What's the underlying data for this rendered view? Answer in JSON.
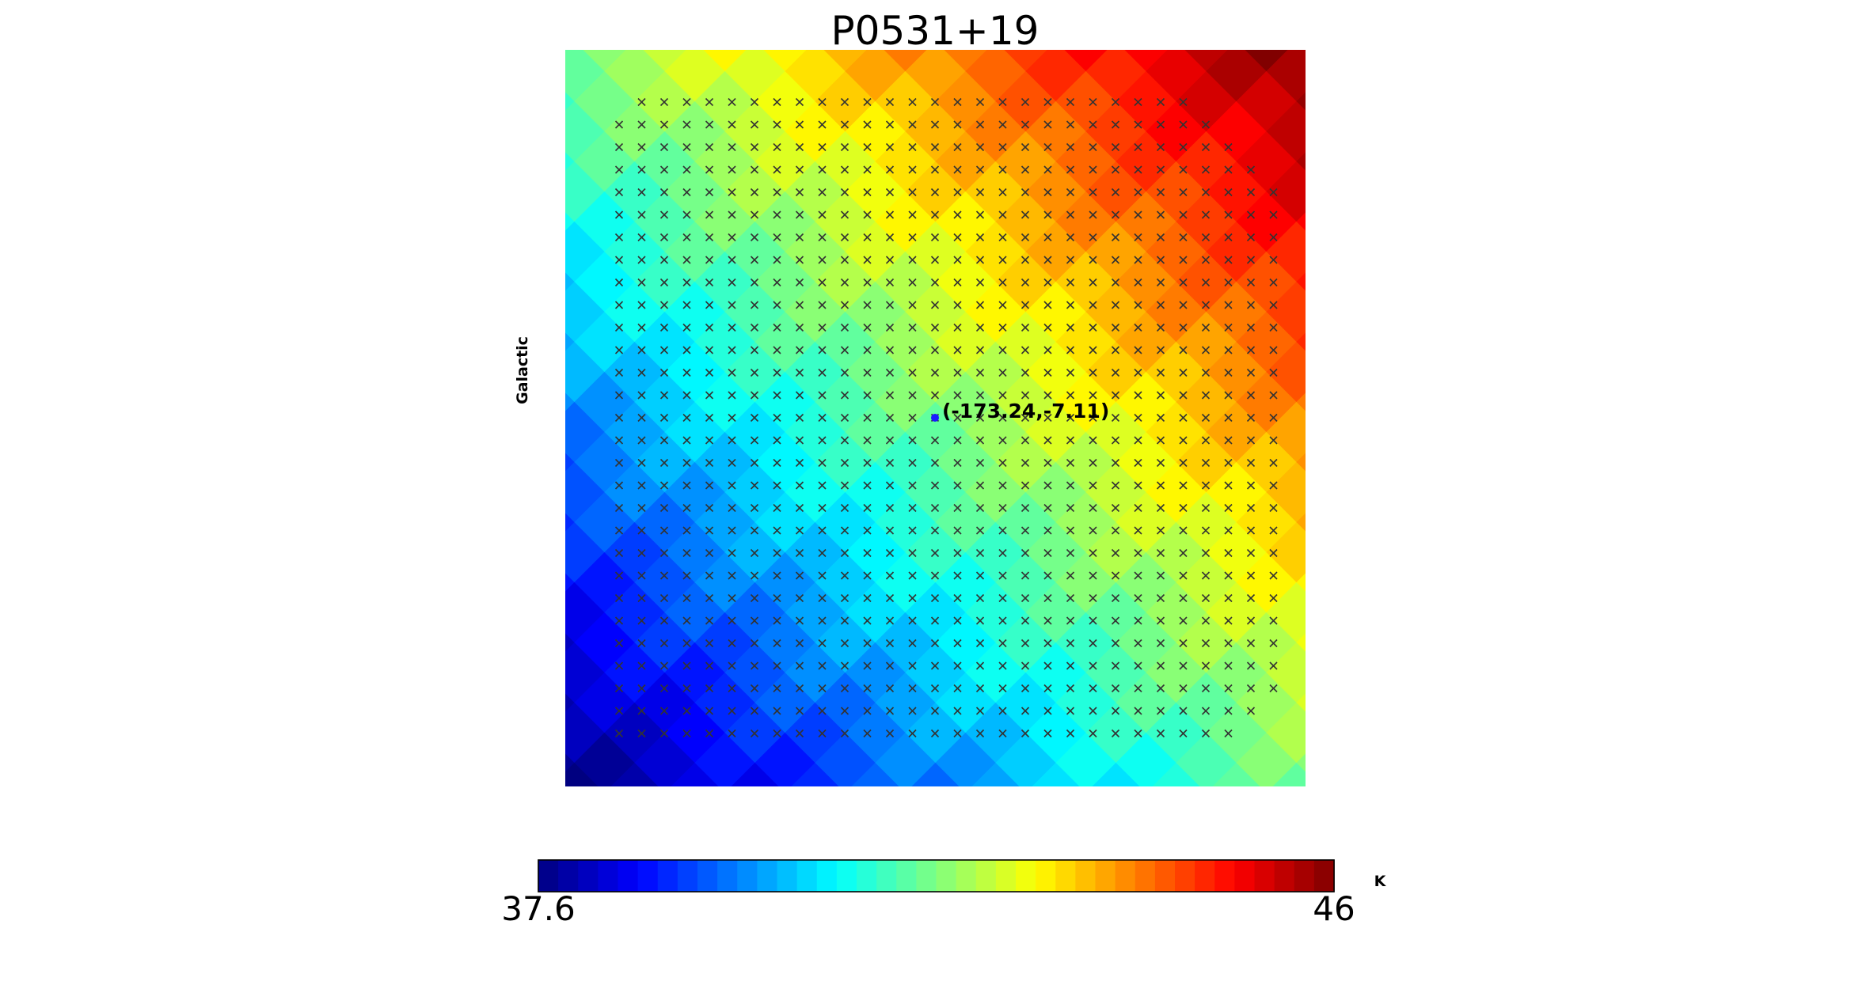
{
  "chart_data": {
    "type": "heatmap",
    "title": "P0531+19",
    "ylabel": "Galactic",
    "colormap": "jet",
    "gradient_direction": "increases from bottom-left to top-right in diagonal bands",
    "colorbar": {
      "min": 37.6,
      "max": 46,
      "min_label": "37.6",
      "max_label": "46",
      "unit": "K"
    },
    "marker": {
      "label": "(-173.24,-7.11)",
      "color": "#1a1aff"
    },
    "overlay": "grid of x markers over a rotated square region",
    "axes_visible": false
  }
}
